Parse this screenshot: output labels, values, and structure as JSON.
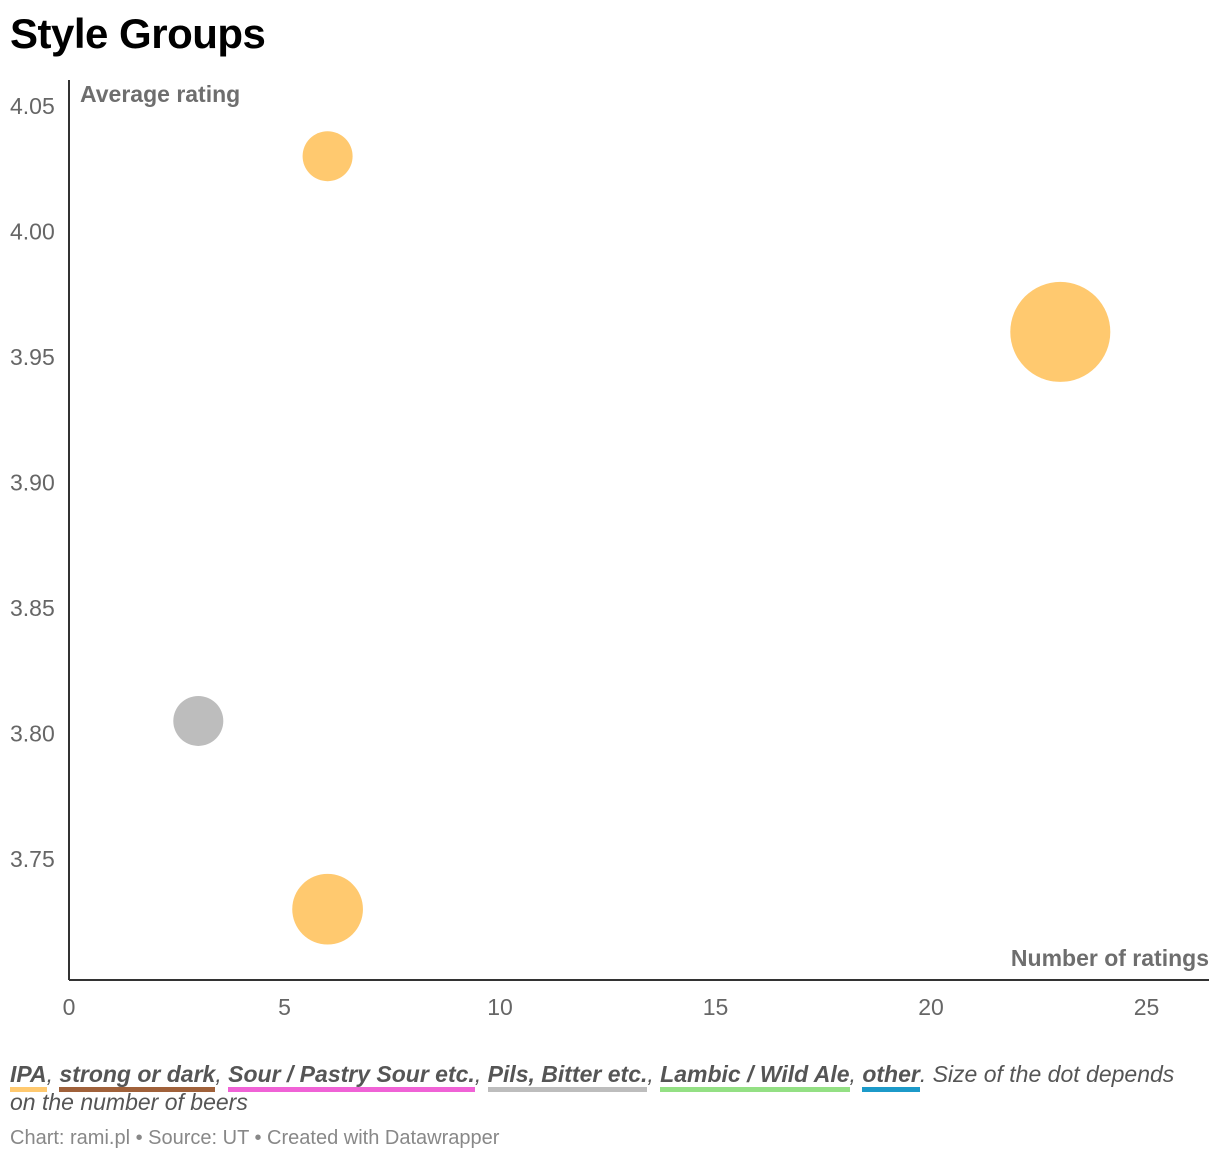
{
  "title": "Style Groups",
  "chart_data": {
    "type": "scatter",
    "title": "Style Groups",
    "xlabel": "Number of ratings",
    "ylabel": "Average rating",
    "xlim": [
      0,
      26.5
    ],
    "ylim": [
      3.705,
      4.06
    ],
    "x_ticks": [
      0,
      5,
      10,
      15,
      20,
      25
    ],
    "x_tick_labels": [
      "0",
      "5",
      "10",
      "15",
      "20",
      "25"
    ],
    "y_ticks": [
      3.75,
      3.8,
      3.85,
      3.9,
      3.95,
      4.0,
      4.05
    ],
    "y_tick_labels": [
      "3.75",
      "3.80",
      "3.85",
      "3.90",
      "3.95",
      "4.00",
      "4.05"
    ],
    "size_note": "Size of the dot depends on the number of beers",
    "points": [
      {
        "group": "IPA",
        "x": 6,
        "y": 4.03,
        "beers": 1
      },
      {
        "group": "IPA",
        "x": 23,
        "y": 3.96,
        "beers": 4
      },
      {
        "group": "Pils, Bitter etc.",
        "x": 3,
        "y": 3.805,
        "beers": 1
      },
      {
        "group": "IPA",
        "x": 6,
        "y": 3.73,
        "beers": 2
      }
    ]
  },
  "legend": {
    "items": [
      {
        "label": "IPA",
        "color": "#ffc96f"
      },
      {
        "label": "strong or dark",
        "color": "#a0613a"
      },
      {
        "label": "Sour / Pastry Sour etc.",
        "color": "#f062d6"
      },
      {
        "label": "Pils, Bitter etc.",
        "color": "#bdbdbd"
      },
      {
        "label": "Lambic / Wild Ale",
        "color": "#94e084"
      },
      {
        "label": "other",
        "color": "#1c9ac9"
      }
    ],
    "note": ". Size of the dot depends on the number of beers"
  },
  "credit": "Chart: rami.pl • Source: UT • Created with Datawrapper"
}
